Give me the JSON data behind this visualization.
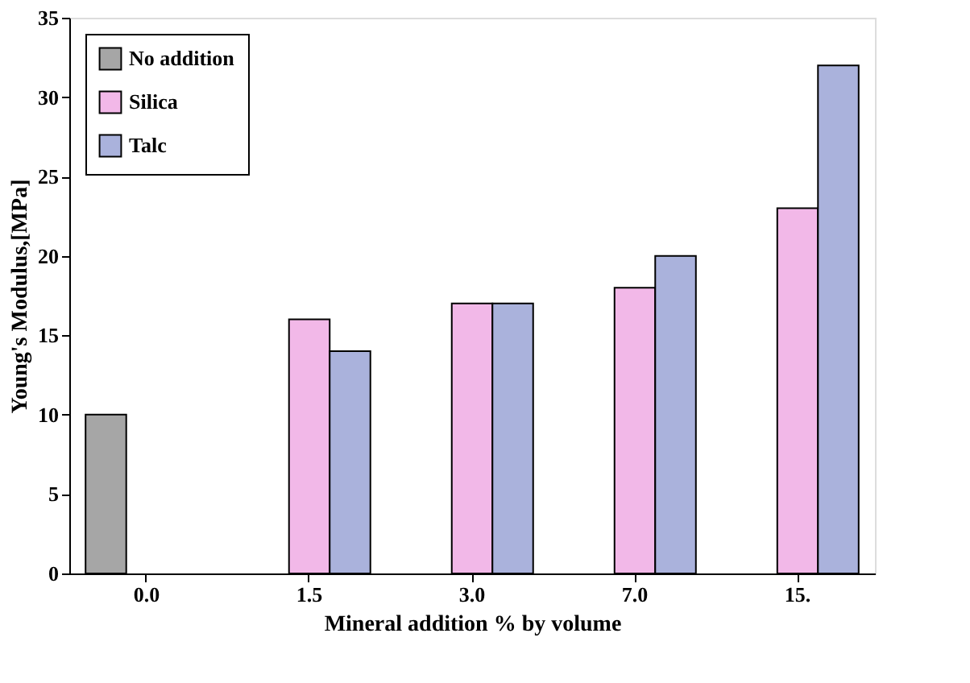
{
  "chart_data": {
    "type": "bar",
    "xlabel": "Mineral addition % by volume",
    "ylabel": "Young's Modulus,[MPa]",
    "categories": [
      "0.0",
      "1.5",
      "3.0",
      "7.0",
      "15."
    ],
    "series": [
      {
        "name": "No addition",
        "color": "#a6a6a6",
        "values": [
          10,
          null,
          null,
          null,
          null
        ]
      },
      {
        "name": "Silica",
        "color": "#f2b8e8",
        "values": [
          null,
          16,
          17,
          18,
          23
        ]
      },
      {
        "name": "Talc",
        "color": "#aab2dc",
        "values": [
          null,
          14,
          17,
          20,
          32
        ]
      }
    ],
    "ylim": [
      0,
      35
    ],
    "yticks": [
      0,
      5,
      10,
      15,
      20,
      25,
      30,
      35
    ],
    "grid": false,
    "legend": "top left"
  }
}
